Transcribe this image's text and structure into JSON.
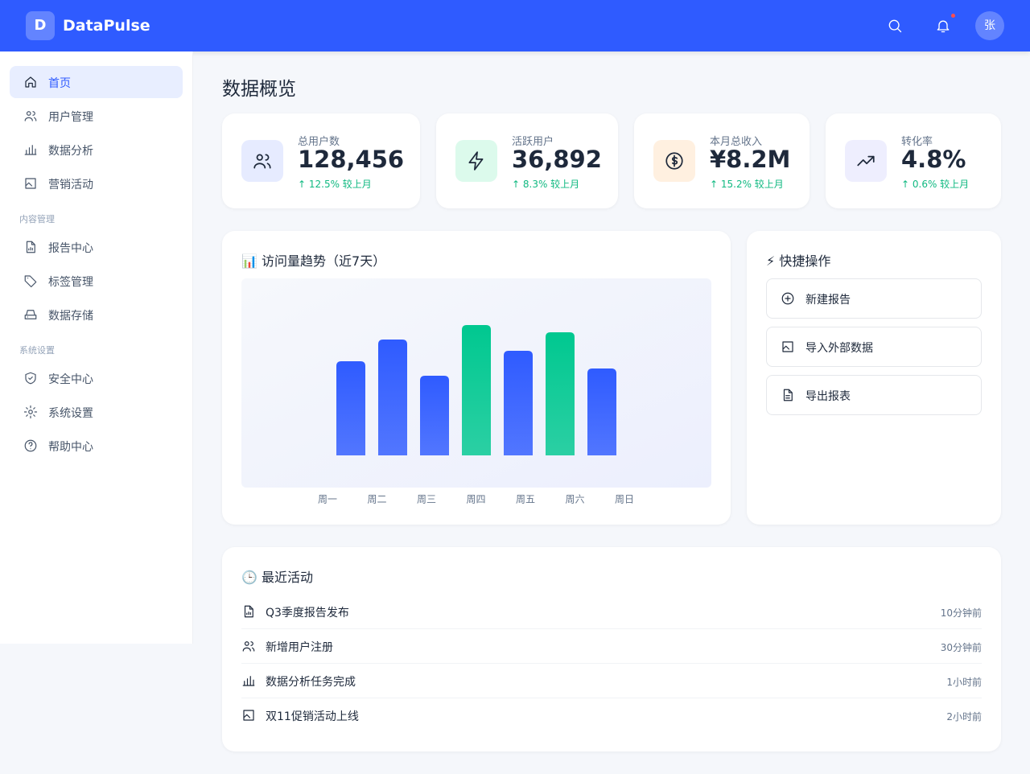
{
  "header": {
    "logo": "D",
    "brand": "DataPulse",
    "avatar": "张"
  },
  "sidebar": {
    "items": [
      "首页",
      "用户管理",
      "数据分析",
      "营销活动"
    ],
    "groups": [
      {
        "title": "内容管理",
        "items": [
          "报告中心",
          "标签管理",
          "数据存储"
        ]
      },
      {
        "title": "系统设置",
        "items": [
          "安全中心",
          "系统设置",
          "帮助中心"
        ]
      }
    ]
  },
  "page_title": "数据概览",
  "stats": [
    {
      "label": "总用户数",
      "value": "128,456",
      "change": "↑ 12.5% 较上月"
    },
    {
      "label": "活跃用户",
      "value": "36,892",
      "change": "↑ 8.3% 较上月"
    },
    {
      "label": "本月总收入",
      "value": "¥8.2M",
      "change": "↑ 15.2% 较上月"
    },
    {
      "label": "转化率",
      "value": "4.8%",
      "change": "↑ 0.6% 较上月"
    }
  ],
  "chart_data": {
    "type": "bar",
    "title": "📊 访问量趋势（近7天）",
    "categories": [
      "周一",
      "周二",
      "周三",
      "周四",
      "周五",
      "周六",
      "周日"
    ],
    "values": [
      117,
      144,
      99,
      162,
      130,
      153,
      108
    ],
    "colors": [
      "#2f5bff",
      "#2f5bff",
      "#2f5bff",
      "#00c890",
      "#2f5bff",
      "#00c890",
      "#2f5bff"
    ]
  },
  "quick_actions": {
    "title": "⚡ 快捷操作",
    "items": [
      "新建报告",
      "导入外部数据",
      "导出报表"
    ]
  },
  "activity": {
    "title": "🕒 最近活动",
    "items": [
      {
        "text": "Q3季度报告发布",
        "time": "10分钟前"
      },
      {
        "text": "新增用户注册",
        "time": "30分钟前"
      },
      {
        "text": "数据分析任务完成",
        "time": "1小时前"
      },
      {
        "text": "双11促销活动上线",
        "time": "2小时前"
      }
    ]
  }
}
